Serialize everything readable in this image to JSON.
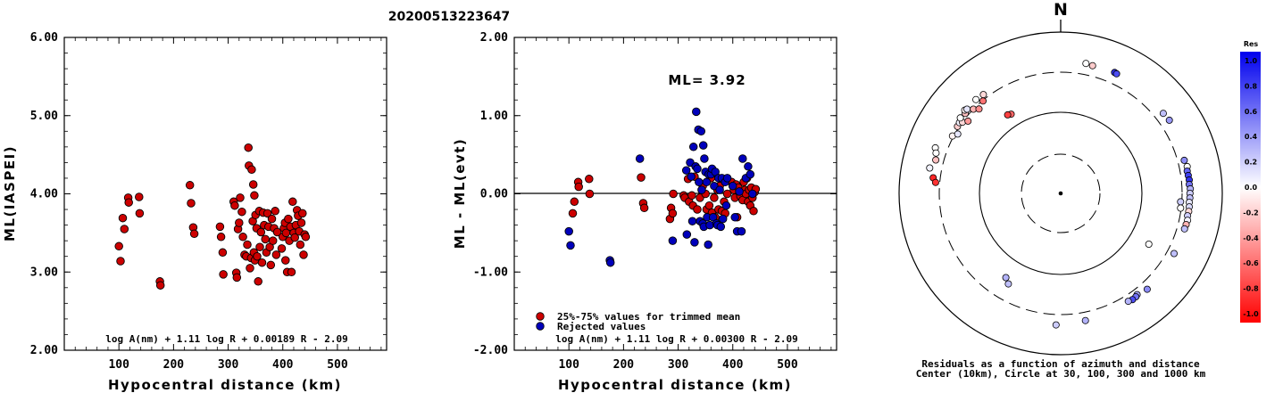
{
  "title": "20200513223647",
  "chart_data": [
    {
      "type": "scatter",
      "xlabel": "Hypocentral distance (km)",
      "ylabel": "ML(IASPEI)",
      "xlim": [
        0,
        590
      ],
      "ylim": [
        2.0,
        6.0
      ],
      "xticks": [
        "100",
        "200",
        "300",
        "400",
        "500"
      ],
      "yticks": [
        "2.00",
        "3.00",
        "4.00",
        "5.00",
        "6.00"
      ],
      "note": "log A(nm) + 1.11 log R + 0.00189 R - 2.09",
      "marker_color": "#cc0000",
      "points": [
        [
          100,
          3.33
        ],
        [
          103,
          3.14
        ],
        [
          107,
          3.69
        ],
        [
          110,
          3.55
        ],
        [
          117,
          3.95
        ],
        [
          118,
          3.89
        ],
        [
          137,
          3.96
        ],
        [
          138,
          3.75
        ],
        [
          175,
          2.88
        ],
        [
          176,
          2.83
        ],
        [
          230,
          4.11
        ],
        [
          232,
          3.88
        ],
        [
          236,
          3.57
        ],
        [
          238,
          3.49
        ],
        [
          285,
          3.58
        ],
        [
          287,
          3.45
        ],
        [
          290,
          3.25
        ],
        [
          291,
          2.97
        ],
        [
          310,
          3.9
        ],
        [
          312,
          3.85
        ],
        [
          315,
          2.99
        ],
        [
          316,
          2.93
        ],
        [
          318,
          3.55
        ],
        [
          320,
          3.63
        ],
        [
          322,
          3.95
        ],
        [
          325,
          3.77
        ],
        [
          327,
          3.45
        ],
        [
          330,
          3.22
        ],
        [
          333,
          3.2
        ],
        [
          335,
          3.35
        ],
        [
          337,
          4.59
        ],
        [
          338,
          4.36
        ],
        [
          340,
          3.05
        ],
        [
          342,
          3.18
        ],
        [
          343,
          4.31
        ],
        [
          345,
          3.65
        ],
        [
          346,
          4.12
        ],
        [
          347,
          3.25
        ],
        [
          348,
          3.98
        ],
        [
          349,
          3.15
        ],
        [
          350,
          3.73
        ],
        [
          352,
          3.56
        ],
        [
          353,
          3.2
        ],
        [
          355,
          2.88
        ],
        [
          357,
          3.78
        ],
        [
          358,
          3.32
        ],
        [
          360,
          3.51
        ],
        [
          362,
          3.12
        ],
        [
          364,
          3.76
        ],
        [
          366,
          3.6
        ],
        [
          368,
          3.42
        ],
        [
          370,
          3.25
        ],
        [
          372,
          3.75
        ],
        [
          374,
          3.58
        ],
        [
          376,
          3.32
        ],
        [
          378,
          3.09
        ],
        [
          380,
          3.68
        ],
        [
          382,
          3.4
        ],
        [
          384,
          3.56
        ],
        [
          386,
          3.78
        ],
        [
          388,
          3.22
        ],
        [
          390,
          3.51
        ],
        [
          398,
          3.3
        ],
        [
          400,
          3.45
        ],
        [
          402,
          3.56
        ],
        [
          404,
          3.63
        ],
        [
          405,
          3.15
        ],
        [
          406,
          3.5
        ],
        [
          408,
          3.0
        ],
        [
          410,
          3.68
        ],
        [
          412,
          3.4
        ],
        [
          414,
          3.58
        ],
        [
          416,
          3.0
        ],
        [
          418,
          3.9
        ],
        [
          420,
          3.5
        ],
        [
          422,
          3.44
        ],
        [
          424,
          3.6
        ],
        [
          426,
          3.79
        ],
        [
          428,
          3.72
        ],
        [
          430,
          3.52
        ],
        [
          432,
          3.35
        ],
        [
          434,
          3.63
        ],
        [
          436,
          3.75
        ],
        [
          438,
          3.22
        ],
        [
          440,
          3.48
        ],
        [
          442,
          3.45
        ]
      ]
    },
    {
      "type": "scatter",
      "xlabel": "Hypocentral distance (km)",
      "ylabel": "ML - ML(evt)",
      "xlim": [
        0,
        590
      ],
      "ylim": [
        -2.0,
        2.0
      ],
      "xticks": [
        "100",
        "200",
        "300",
        "400",
        "500"
      ],
      "yticks": [
        "-2.00",
        "-1.00",
        "0.00",
        "1.00",
        "2.00"
      ],
      "annotation": "ML= 3.92",
      "note": "log A(nm) + 1.11 log R + 0.00300 R - 2.09",
      "legend": [
        {
          "label": "25%-75% values for trimmed mean",
          "color": "#cc0000"
        },
        {
          "label": "Rejected values",
          "color": "#0000bb"
        }
      ],
      "series": [
        {
          "name": "25%-75% values for trimmed mean",
          "color": "#cc0000",
          "points": [
            [
              107,
              -0.25
            ],
            [
              110,
              -0.1
            ],
            [
              117,
              0.15
            ],
            [
              118,
              0.09
            ],
            [
              137,
              0.19
            ],
            [
              138,
              0.0
            ],
            [
              232,
              0.21
            ],
            [
              236,
              -0.12
            ],
            [
              238,
              -0.18
            ],
            [
              285,
              -0.32
            ],
            [
              287,
              -0.18
            ],
            [
              290,
              -0.25
            ],
            [
              291,
              0.0
            ],
            [
              310,
              -0.02
            ],
            [
              312,
              -0.05
            ],
            [
              318,
              0.19
            ],
            [
              320,
              -0.1
            ],
            [
              325,
              -0.02
            ],
            [
              327,
              -0.15
            ],
            [
              330,
              0.22
            ],
            [
              335,
              -0.2
            ],
            [
              340,
              -0.05
            ],
            [
              345,
              0.1
            ],
            [
              350,
              0.0
            ],
            [
              352,
              -0.2
            ],
            [
              357,
              -0.15
            ],
            [
              360,
              0.2
            ],
            [
              362,
              -0.24
            ],
            [
              366,
              -0.05
            ],
            [
              368,
              -0.3
            ],
            [
              372,
              0.05
            ],
            [
              374,
              -0.2
            ],
            [
              376,
              0.1
            ],
            [
              380,
              -0.22
            ],
            [
              384,
              -0.1
            ],
            [
              386,
              -0.25
            ],
            [
              390,
              0.0
            ],
            [
              398,
              0.15
            ],
            [
              400,
              0.1
            ],
            [
              402,
              0.05
            ],
            [
              404,
              -0.05
            ],
            [
              406,
              0.12
            ],
            [
              408,
              -0.3
            ],
            [
              410,
              0.08
            ],
            [
              412,
              0.02
            ],
            [
              414,
              -0.03
            ],
            [
              418,
              -0.08
            ],
            [
              420,
              0.15
            ],
            [
              422,
              0.05
            ],
            [
              424,
              0.0
            ],
            [
              426,
              0.2
            ],
            [
              428,
              -0.1
            ],
            [
              430,
              0.05
            ],
            [
              432,
              -0.15
            ],
            [
              434,
              0.08
            ],
            [
              436,
              -0.05
            ],
            [
              438,
              -0.22
            ],
            [
              440,
              0.02
            ],
            [
              442,
              0.06
            ]
          ]
        },
        {
          "name": "Rejected values",
          "color": "#0000bb",
          "points": [
            [
              100,
              -0.48
            ],
            [
              103,
              -0.66
            ],
            [
              175,
              -0.85
            ],
            [
              176,
              -0.88
            ],
            [
              230,
              0.45
            ],
            [
              290,
              -0.6
            ],
            [
              315,
              0.3
            ],
            [
              316,
              -0.52
            ],
            [
              322,
              0.4
            ],
            [
              324,
              0.22
            ],
            [
              326,
              -0.35
            ],
            [
              328,
              0.6
            ],
            [
              330,
              -0.62
            ],
            [
              332,
              0.35
            ],
            [
              333,
              1.05
            ],
            [
              335,
              0.32
            ],
            [
              337,
              0.82
            ],
            [
              338,
              0.15
            ],
            [
              340,
              -0.35
            ],
            [
              342,
              0.8
            ],
            [
              343,
              0.05
            ],
            [
              345,
              -0.38
            ],
            [
              346,
              0.62
            ],
            [
              347,
              -0.42
            ],
            [
              348,
              0.45
            ],
            [
              350,
              0.28
            ],
            [
              352,
              0.15
            ],
            [
              353,
              -0.3
            ],
            [
              355,
              -0.65
            ],
            [
              356,
              0.25
            ],
            [
              358,
              -0.4
            ],
            [
              360,
              0.25
            ],
            [
              362,
              0.32
            ],
            [
              364,
              -0.3
            ],
            [
              366,
              0.1
            ],
            [
              368,
              0.28
            ],
            [
              370,
              -0.38
            ],
            [
              372,
              -0.4
            ],
            [
              374,
              0.2
            ],
            [
              376,
              0.05
            ],
            [
              378,
              -0.42
            ],
            [
              380,
              0.2
            ],
            [
              382,
              -0.32
            ],
            [
              386,
              0.15
            ],
            [
              388,
              -0.15
            ],
            [
              390,
              0.2
            ],
            [
              400,
              0.1
            ],
            [
              404,
              -0.3
            ],
            [
              408,
              -0.48
            ],
            [
              412,
              0.03
            ],
            [
              416,
              -0.48
            ],
            [
              418,
              0.45
            ],
            [
              424,
              0.2
            ],
            [
              428,
              0.35
            ],
            [
              432,
              0.25
            ],
            [
              436,
              0.0
            ]
          ]
        }
      ]
    },
    {
      "type": "scatter",
      "subtype": "polar",
      "north_label": "N",
      "caption_line1": "Residuals as a function of azimuth and distance",
      "caption_line2": "Center (10km), Circle at 30, 100, 300 and 1000 km",
      "ring_distances_km": [
        10,
        30,
        100,
        300,
        1000
      ],
      "colorbar": {
        "title": "Res",
        "ticks": [
          "1.0",
          "0.8",
          "0.6",
          "0.4",
          "0.2",
          "0.0",
          "-0.2",
          "-0.4",
          "-0.6",
          "-0.8",
          "-1.0"
        ],
        "max_color": "#0000ee",
        "min_color": "#ff0000"
      },
      "points": [
        {
          "az": 298,
          "dist": 310,
          "res": -0.05
        },
        {
          "az": 300,
          "dist": 280,
          "res": 0.1
        },
        {
          "az": 303,
          "dist": 315,
          "res": -0.2
        },
        {
          "az": 305,
          "dist": 320,
          "res": 0.05
        },
        {
          "az": 306,
          "dist": 300,
          "res": -0.15
        },
        {
          "az": 307,
          "dist": 340,
          "res": 0.0
        },
        {
          "az": 308,
          "dist": 270,
          "res": -0.4
        },
        {
          "az": 310,
          "dist": 330,
          "res": -0.25
        },
        {
          "az": 311,
          "dist": 355,
          "res": -0.05
        },
        {
          "az": 312,
          "dist": 345,
          "res": 0.1
        },
        {
          "az": 314,
          "dist": 300,
          "res": -0.3
        },
        {
          "az": 316,
          "dist": 270,
          "res": -0.45
        },
        {
          "az": 318,
          "dist": 350,
          "res": 0.0
        },
        {
          "az": 320,
          "dist": 295,
          "res": -0.55
        },
        {
          "az": 322,
          "dist": 340,
          "res": -0.15
        },
        {
          "az": 290,
          "dist": 430,
          "res": 0.0
        },
        {
          "az": 288,
          "dist": 400,
          "res": 0.0
        },
        {
          "az": 285,
          "dist": 380,
          "res": -0.25
        },
        {
          "az": 281,
          "dist": 430,
          "res": 0.05
        },
        {
          "az": 277,
          "dist": 370,
          "res": -0.85
        },
        {
          "az": 275,
          "dist": 340,
          "res": -0.8
        },
        {
          "az": 328,
          "dist": 140,
          "res": -0.6
        },
        {
          "az": 326,
          "dist": 145,
          "res": -0.75
        },
        {
          "az": 11,
          "dist": 420,
          "res": 0.0
        },
        {
          "az": 14,
          "dist": 410,
          "res": -0.2
        },
        {
          "az": 24,
          "dist": 420,
          "res": 0.8
        },
        {
          "az": 25,
          "dist": 415,
          "res": 0.7
        },
        {
          "az": 52,
          "dist": 390,
          "res": 0.25
        },
        {
          "az": 56,
          "dist": 400,
          "res": 0.4
        },
        {
          "az": 75,
          "dist": 365,
          "res": 0.45
        },
        {
          "az": 78,
          "dist": 380,
          "res": 0.0
        },
        {
          "az": 80,
          "dist": 370,
          "res": 0.6
        },
        {
          "az": 82,
          "dist": 375,
          "res": 0.75
        },
        {
          "az": 84,
          "dist": 380,
          "res": 0.8
        },
        {
          "az": 86,
          "dist": 375,
          "res": 0.55
        },
        {
          "az": 88,
          "dist": 385,
          "res": 0.3
        },
        {
          "az": 90,
          "dist": 380,
          "res": 0.2
        },
        {
          "az": 92,
          "dist": 380,
          "res": 0.25
        },
        {
          "az": 94,
          "dist": 375,
          "res": 0.1
        },
        {
          "az": 96,
          "dist": 380,
          "res": 0.15
        },
        {
          "az": 98,
          "dist": 380,
          "res": -0.15
        },
        {
          "az": 100,
          "dist": 375,
          "res": 0.2
        },
        {
          "az": 102,
          "dist": 385,
          "res": 0.05
        },
        {
          "az": 104,
          "dist": 380,
          "res": -0.3
        },
        {
          "az": 106,
          "dist": 375,
          "res": 0.25
        },
        {
          "az": 94,
          "dist": 290,
          "res": 0.2
        },
        {
          "az": 97,
          "dist": 295,
          "res": 0.0
        },
        {
          "az": 118,
          "dist": 370,
          "res": 0.25
        },
        {
          "az": 138,
          "dist": 380,
          "res": 0.45
        },
        {
          "az": 143,
          "dist": 355,
          "res": 0.35
        },
        {
          "az": 144,
          "dist": 365,
          "res": 0.55
        },
        {
          "az": 146,
          "dist": 370,
          "res": 0.7
        },
        {
          "az": 148,
          "dist": 360,
          "res": 0.3
        },
        {
          "az": 120,
          "dist": 175,
          "res": 0.0
        },
        {
          "az": 169,
          "dist": 385,
          "res": 0.3
        },
        {
          "az": 182,
          "dist": 410,
          "res": 0.2
        },
        {
          "az": 210,
          "dist": 190,
          "res": 0.25
        },
        {
          "az": 213,
          "dist": 170,
          "res": 0.3
        }
      ]
    }
  ]
}
